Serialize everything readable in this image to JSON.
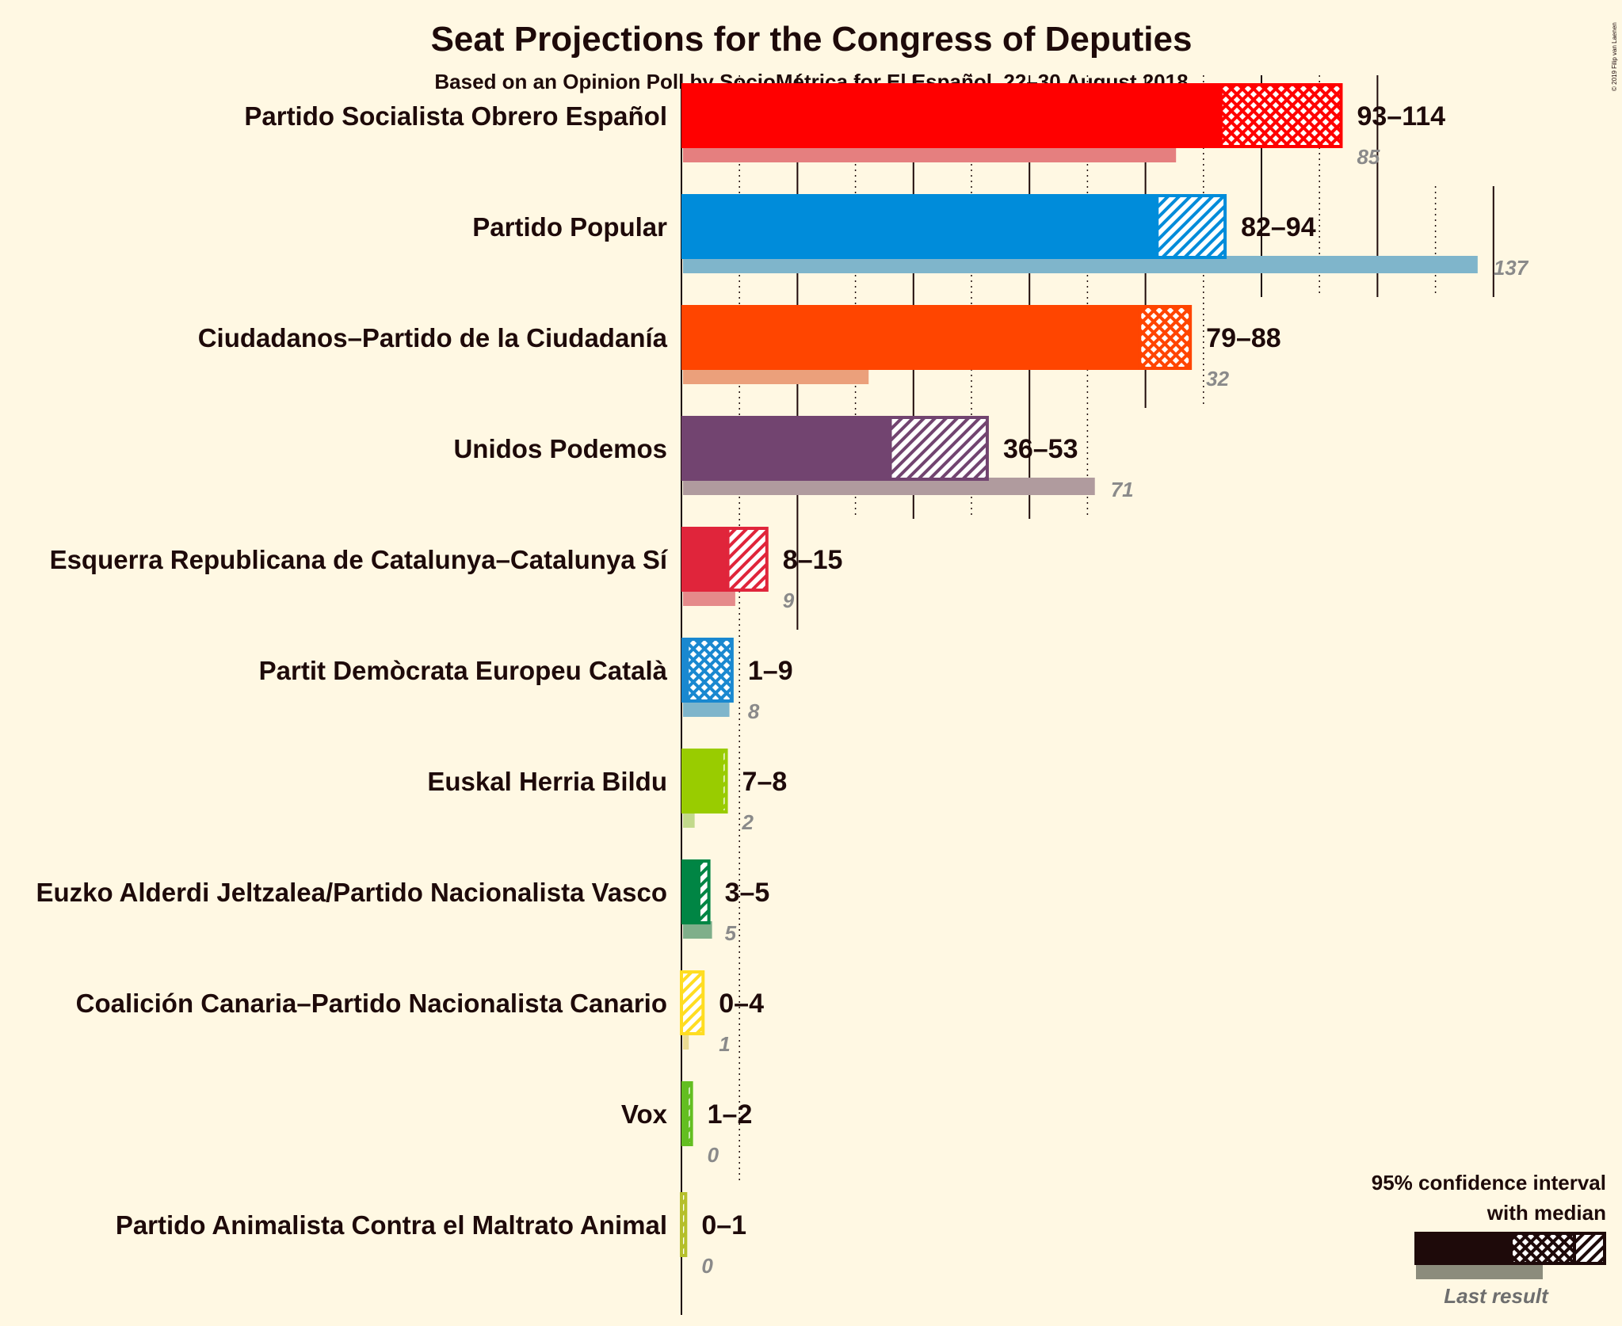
{
  "chart_data": {
    "type": "bar",
    "title": "Seat Projections for the Congress of Deputies",
    "subtitle": "Based on an Opinion Poll by SocioMétrica for El Español, 22–30 August 2018",
    "copyright": "© 2019 Filip van Laenen",
    "xlim": [
      0,
      160
    ],
    "grid_major_every": 20,
    "grid_minor_every": 10,
    "parties": [
      {
        "name": "Partido Socialista Obrero Español",
        "low": 93,
        "median": 101,
        "high": 114,
        "range_label": "93–114",
        "last": 85,
        "last_label": "85",
        "color": "#FF0000",
        "last_color": "#E57F7F",
        "pattern": "cross"
      },
      {
        "name": "Partido Popular",
        "low": 82,
        "median": 82,
        "high": 94,
        "range_label": "82–94",
        "last": 137,
        "last_label": "137",
        "color": "#008CDA",
        "last_color": "#7FB5CB",
        "pattern": "diag"
      },
      {
        "name": "Ciudadanos–Partido de la Ciudadanía",
        "low": 79,
        "median": 79,
        "high": 88,
        "range_label": "79–88",
        "last": 32,
        "last_label": "32",
        "color": "#FF4500",
        "last_color": "#EBA07B",
        "pattern": "cross"
      },
      {
        "name": "Unidos Podemos",
        "low": 36,
        "median": 36,
        "high": 53,
        "range_label": "36–53",
        "last": 71,
        "last_label": "71",
        "color": "#724470",
        "last_color": "#B09B9E",
        "pattern": "diag"
      },
      {
        "name": "Esquerra Republicana de Catalunya–Catalunya Sí",
        "low": 8,
        "median": 10,
        "high": 15,
        "range_label": "8–15",
        "last": 9,
        "last_label": "9",
        "color": "#E0253B",
        "last_color": "#E58A8A",
        "pattern": "diag"
      },
      {
        "name": "Partit Demòcrata Europeu Català",
        "low": 1,
        "median": 8,
        "high": 9,
        "range_label": "1–9",
        "last": 8,
        "last_label": "8",
        "color": "#1A88D0",
        "last_color": "#7FB5CB",
        "pattern": "cross"
      },
      {
        "name": "Euskal Herria Bildu",
        "low": 7,
        "median": 8,
        "high": 8,
        "range_label": "7–8",
        "last": 2,
        "last_label": "2",
        "color": "#99CC00",
        "last_color": "#C2D98B",
        "pattern": "diag"
      },
      {
        "name": "Euzko Alderdi Jeltzalea/Partido Nacionalista Vasco",
        "low": 3,
        "median": 4,
        "high": 5,
        "range_label": "3–5",
        "last": 5,
        "last_label": "5",
        "color": "#008544",
        "last_color": "#7FAF8A",
        "pattern": "diag"
      },
      {
        "name": "Coalición Canaria–Partido Nacionalista Canario",
        "low": 0,
        "median": 0,
        "high": 4,
        "range_label": "0–4",
        "last": 1,
        "last_label": "1",
        "color": "#FFDD22",
        "last_color": "#EBDB93",
        "pattern": "diag"
      },
      {
        "name": "Vox",
        "low": 1,
        "median": 2,
        "high": 2,
        "range_label": "1–2",
        "last": 0,
        "last_label": "0",
        "color": "#63BE21",
        "last_color": "#A9D08A",
        "pattern": "diag"
      },
      {
        "name": "Partido Animalista Contra el Maltrato Animal",
        "low": 0,
        "median": 1,
        "high": 1,
        "range_label": "0–1",
        "last": 0,
        "last_label": "0",
        "color": "#B5BF2B",
        "last_color": "#D4D88A",
        "pattern": "diag"
      }
    ],
    "legend": {
      "title_line1": "95% confidence interval",
      "title_line2": "with median",
      "last_result": "Last result",
      "placement": "bottom-right"
    }
  }
}
